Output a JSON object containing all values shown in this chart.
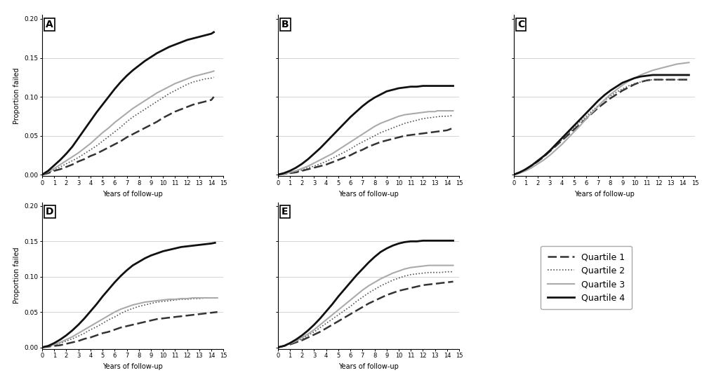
{
  "xlabel": "Years of follow-up",
  "ylabel": "Proportion failed",
  "xlim": [
    0,
    15
  ],
  "ylim": [
    -0.002,
    0.205
  ],
  "yticks": [
    0.0,
    0.05,
    0.1,
    0.15,
    0.2
  ],
  "xticks": [
    0,
    1,
    2,
    3,
    4,
    5,
    6,
    7,
    8,
    9,
    10,
    11,
    12,
    13,
    14,
    15
  ],
  "line_styles": {
    "Q1": {
      "color": "#333333",
      "linestyle": "--",
      "linewidth": 1.8,
      "dashes": [
        6,
        3
      ]
    },
    "Q2": {
      "color": "#555555",
      "linestyle": "--",
      "linewidth": 1.2,
      "dashes": [
        2,
        2,
        2,
        2,
        2,
        2
      ]
    },
    "Q3": {
      "color": "#aaaaaa",
      "linestyle": "-",
      "linewidth": 1.5
    },
    "Q4": {
      "color": "#111111",
      "linestyle": "-",
      "linewidth": 2.0
    }
  },
  "legend_labels": [
    "Quartile 1",
    "Quartile 2",
    "Quartile 3",
    "Quartile 4"
  ],
  "background_color": "#ffffff",
  "grid_color": "#cccccc",
  "panel_A": {
    "Q1": {
      "x": [
        0,
        0.5,
        1,
        1.5,
        2,
        2.5,
        3,
        3.5,
        4,
        4.5,
        5,
        5.5,
        6,
        6.5,
        7,
        7.5,
        8,
        8.5,
        9,
        9.5,
        10,
        10.5,
        11,
        11.5,
        12,
        12.5,
        13,
        13.5,
        14,
        14.2
      ],
      "y": [
        0,
        0.002,
        0.005,
        0.007,
        0.01,
        0.013,
        0.017,
        0.02,
        0.024,
        0.027,
        0.031,
        0.035,
        0.039,
        0.043,
        0.048,
        0.052,
        0.056,
        0.06,
        0.064,
        0.068,
        0.073,
        0.077,
        0.081,
        0.084,
        0.087,
        0.09,
        0.092,
        0.094,
        0.096,
        0.1
      ]
    },
    "Q2": {
      "x": [
        0,
        0.5,
        1,
        1.5,
        2,
        2.5,
        3,
        3.5,
        4,
        4.5,
        5,
        5.5,
        6,
        6.5,
        7,
        7.5,
        8,
        8.5,
        9,
        9.5,
        10,
        10.5,
        11,
        11.5,
        12,
        12.5,
        13,
        13.5,
        14,
        14.2
      ],
      "y": [
        0,
        0.003,
        0.006,
        0.01,
        0.014,
        0.018,
        0.022,
        0.027,
        0.032,
        0.037,
        0.043,
        0.049,
        0.055,
        0.061,
        0.068,
        0.074,
        0.079,
        0.084,
        0.089,
        0.094,
        0.099,
        0.104,
        0.108,
        0.112,
        0.116,
        0.119,
        0.121,
        0.123,
        0.124,
        0.125
      ]
    },
    "Q3": {
      "x": [
        0,
        0.5,
        1,
        1.5,
        2,
        2.5,
        3,
        3.5,
        4,
        4.5,
        5,
        5.5,
        6,
        6.5,
        7,
        7.5,
        8,
        8.5,
        9,
        9.5,
        10,
        10.5,
        11,
        11.5,
        12,
        12.5,
        13,
        13.5,
        14,
        14.2
      ],
      "y": [
        0,
        0.004,
        0.008,
        0.013,
        0.018,
        0.023,
        0.028,
        0.034,
        0.04,
        0.047,
        0.054,
        0.06,
        0.067,
        0.073,
        0.079,
        0.085,
        0.09,
        0.095,
        0.1,
        0.105,
        0.109,
        0.113,
        0.117,
        0.12,
        0.123,
        0.126,
        0.128,
        0.13,
        0.132,
        0.133
      ]
    },
    "Q4": {
      "x": [
        0,
        0.5,
        1,
        1.5,
        2,
        2.5,
        3,
        3.5,
        4,
        4.5,
        5,
        5.5,
        6,
        6.5,
        7,
        7.5,
        8,
        8.5,
        9,
        9.5,
        10,
        10.5,
        11,
        11.5,
        12,
        12.5,
        13,
        13.5,
        14,
        14.2
      ],
      "y": [
        0,
        0.005,
        0.012,
        0.019,
        0.027,
        0.036,
        0.047,
        0.058,
        0.069,
        0.08,
        0.09,
        0.1,
        0.11,
        0.119,
        0.127,
        0.134,
        0.14,
        0.146,
        0.151,
        0.156,
        0.16,
        0.164,
        0.167,
        0.17,
        0.173,
        0.175,
        0.177,
        0.179,
        0.181,
        0.183
      ]
    }
  },
  "panel_B": {
    "Q1": {
      "x": [
        0,
        0.5,
        1,
        1.5,
        2,
        2.5,
        3,
        3.5,
        4,
        4.5,
        5,
        5.5,
        6,
        6.5,
        7,
        7.5,
        8,
        8.5,
        9,
        9.5,
        10,
        10.5,
        11,
        11.5,
        12,
        12.5,
        13,
        13.5,
        14,
        14.5
      ],
      "y": [
        0,
        0.001,
        0.002,
        0.003,
        0.005,
        0.007,
        0.009,
        0.011,
        0.013,
        0.016,
        0.019,
        0.022,
        0.025,
        0.029,
        0.032,
        0.036,
        0.039,
        0.042,
        0.044,
        0.046,
        0.048,
        0.05,
        0.051,
        0.052,
        0.053,
        0.054,
        0.055,
        0.056,
        0.057,
        0.06
      ]
    },
    "Q2": {
      "x": [
        0,
        0.5,
        1,
        1.5,
        2,
        2.5,
        3,
        3.5,
        4,
        4.5,
        5,
        5.5,
        6,
        6.5,
        7,
        7.5,
        8,
        8.5,
        9,
        9.5,
        10,
        10.5,
        11,
        11.5,
        12,
        12.5,
        13,
        13.5,
        14,
        14.5
      ],
      "y": [
        0,
        0.001,
        0.002,
        0.004,
        0.006,
        0.009,
        0.011,
        0.014,
        0.017,
        0.021,
        0.025,
        0.029,
        0.033,
        0.038,
        0.042,
        0.046,
        0.05,
        0.054,
        0.057,
        0.06,
        0.063,
        0.066,
        0.068,
        0.07,
        0.072,
        0.073,
        0.074,
        0.075,
        0.075,
        0.076
      ]
    },
    "Q3": {
      "x": [
        0,
        0.5,
        1,
        1.5,
        2,
        2.5,
        3,
        3.5,
        4,
        4.5,
        5,
        5.5,
        6,
        6.5,
        7,
        7.5,
        8,
        8.5,
        9,
        9.5,
        10,
        10.5,
        11,
        11.5,
        12,
        12.5,
        13,
        13.2,
        14,
        14.5
      ],
      "y": [
        0,
        0.001,
        0.003,
        0.005,
        0.008,
        0.011,
        0.015,
        0.019,
        0.023,
        0.027,
        0.032,
        0.037,
        0.042,
        0.047,
        0.052,
        0.057,
        0.062,
        0.066,
        0.069,
        0.072,
        0.075,
        0.077,
        0.078,
        0.079,
        0.08,
        0.081,
        0.081,
        0.082,
        0.082,
        0.082
      ]
    },
    "Q4": {
      "x": [
        0,
        0.5,
        1,
        1.5,
        2,
        2.5,
        3,
        3.5,
        4,
        4.5,
        5,
        5.5,
        6,
        6.5,
        7,
        7.5,
        8,
        8.5,
        9,
        9.5,
        10,
        10.5,
        11,
        11.5,
        12,
        12.2,
        13,
        13.5,
        14,
        14.5
      ],
      "y": [
        0,
        0.002,
        0.005,
        0.009,
        0.014,
        0.02,
        0.027,
        0.034,
        0.042,
        0.05,
        0.058,
        0.066,
        0.074,
        0.081,
        0.088,
        0.094,
        0.099,
        0.103,
        0.107,
        0.109,
        0.111,
        0.112,
        0.113,
        0.113,
        0.114,
        0.114,
        0.114,
        0.114,
        0.114,
        0.114
      ]
    }
  },
  "panel_C": {
    "Q1": {
      "x": [
        0,
        0.5,
        1,
        1.5,
        2,
        2.5,
        3,
        3.5,
        4,
        4.5,
        5,
        5.5,
        6,
        6.5,
        7,
        7.5,
        8,
        8.5,
        9,
        9.5,
        10,
        10.5,
        11,
        11.5,
        12,
        12.2,
        13,
        13.5,
        14,
        14.5
      ],
      "y": [
        0,
        0.003,
        0.007,
        0.012,
        0.017,
        0.023,
        0.03,
        0.037,
        0.044,
        0.051,
        0.058,
        0.065,
        0.072,
        0.079,
        0.086,
        0.092,
        0.098,
        0.103,
        0.108,
        0.112,
        0.116,
        0.119,
        0.121,
        0.122,
        0.122,
        0.122,
        0.122,
        0.122,
        0.122,
        0.122
      ]
    },
    "Q2": {
      "x": [
        0,
        0.5,
        1,
        1.5,
        2,
        2.5,
        3,
        3.5,
        4,
        4.5,
        5,
        5.5,
        6,
        6.5,
        7,
        7.5,
        8,
        8.5,
        9,
        9.5,
        10,
        10.5,
        11,
        11.5,
        12,
        12.5,
        13,
        13.5,
        14,
        14.5
      ],
      "y": [
        0,
        0.003,
        0.007,
        0.012,
        0.017,
        0.023,
        0.03,
        0.037,
        0.045,
        0.053,
        0.06,
        0.068,
        0.075,
        0.082,
        0.089,
        0.095,
        0.101,
        0.106,
        0.11,
        0.114,
        0.117,
        0.119,
        0.121,
        0.122,
        0.122,
        0.122,
        0.122,
        0.122,
        0.122,
        0.122
      ]
    },
    "Q3": {
      "x": [
        0,
        0.5,
        1,
        1.5,
        2,
        2.5,
        3,
        3.5,
        4,
        4.5,
        5,
        5.5,
        6,
        6.5,
        7,
        7.5,
        8,
        8.5,
        9,
        9.5,
        10,
        10.5,
        11,
        11.5,
        12,
        12.5,
        13,
        13.5,
        14,
        14.5
      ],
      "y": [
        0,
        0.002,
        0.005,
        0.009,
        0.014,
        0.019,
        0.025,
        0.032,
        0.039,
        0.047,
        0.055,
        0.063,
        0.072,
        0.08,
        0.088,
        0.096,
        0.103,
        0.109,
        0.115,
        0.12,
        0.124,
        0.128,
        0.131,
        0.134,
        0.136,
        0.138,
        0.14,
        0.142,
        0.143,
        0.144
      ]
    },
    "Q4": {
      "x": [
        0,
        0.5,
        1,
        1.5,
        2,
        2.5,
        3,
        3.5,
        4,
        4.5,
        5,
        5.5,
        6,
        6.5,
        7,
        7.5,
        8,
        8.5,
        9,
        9.5,
        10,
        10.5,
        11,
        11.5,
        12,
        12.2,
        13,
        13.5,
        14,
        14.5
      ],
      "y": [
        0,
        0.003,
        0.007,
        0.012,
        0.018,
        0.024,
        0.031,
        0.039,
        0.047,
        0.055,
        0.063,
        0.071,
        0.079,
        0.087,
        0.095,
        0.102,
        0.108,
        0.113,
        0.118,
        0.121,
        0.124,
        0.126,
        0.127,
        0.128,
        0.128,
        0.128,
        0.128,
        0.128,
        0.128,
        0.128
      ]
    }
  },
  "panel_D": {
    "Q1": {
      "x": [
        0,
        0.5,
        1,
        1.5,
        2,
        2.5,
        3,
        3.5,
        4,
        4.5,
        5,
        5.5,
        6,
        6.5,
        7,
        7.5,
        8,
        8.5,
        9,
        9.5,
        10,
        10.5,
        11,
        11.5,
        12,
        12.5,
        13,
        13.5,
        14,
        14.5
      ],
      "y": [
        0,
        0.001,
        0.002,
        0.003,
        0.005,
        0.007,
        0.009,
        0.012,
        0.014,
        0.017,
        0.02,
        0.022,
        0.025,
        0.028,
        0.03,
        0.032,
        0.034,
        0.036,
        0.038,
        0.04,
        0.041,
        0.042,
        0.043,
        0.044,
        0.045,
        0.046,
        0.047,
        0.048,
        0.049,
        0.05
      ]
    },
    "Q2": {
      "x": [
        0,
        0.5,
        1,
        1.5,
        2,
        2.5,
        3,
        3.5,
        4,
        4.5,
        5,
        5.5,
        6,
        6.5,
        7,
        7.5,
        8,
        8.5,
        9,
        9.5,
        10,
        10.5,
        11,
        11.5,
        12,
        12.5,
        13,
        13.5,
        14,
        14.5
      ],
      "y": [
        0,
        0.001,
        0.003,
        0.006,
        0.009,
        0.012,
        0.016,
        0.02,
        0.025,
        0.029,
        0.034,
        0.039,
        0.043,
        0.048,
        0.052,
        0.055,
        0.058,
        0.06,
        0.062,
        0.064,
        0.065,
        0.066,
        0.067,
        0.068,
        0.068,
        0.069,
        0.069,
        0.07,
        0.07,
        0.07
      ]
    },
    "Q3": {
      "x": [
        0,
        0.5,
        1,
        1.5,
        2,
        2.5,
        3,
        3.5,
        4,
        4.5,
        5,
        5.5,
        6,
        6.5,
        7,
        7.5,
        8,
        8.5,
        9,
        9.5,
        10,
        10.5,
        11,
        11.5,
        12,
        12.5,
        13,
        13.2,
        14,
        14.5
      ],
      "y": [
        0,
        0.002,
        0.004,
        0.007,
        0.011,
        0.015,
        0.02,
        0.025,
        0.03,
        0.035,
        0.04,
        0.045,
        0.05,
        0.054,
        0.057,
        0.06,
        0.062,
        0.064,
        0.065,
        0.066,
        0.067,
        0.068,
        0.068,
        0.069,
        0.069,
        0.07,
        0.07,
        0.07,
        0.07,
        0.07
      ]
    },
    "Q4": {
      "x": [
        0,
        0.5,
        1,
        1.5,
        2,
        2.5,
        3,
        3.5,
        4,
        4.5,
        5,
        5.5,
        6,
        6.5,
        7,
        7.5,
        8,
        8.5,
        9,
        9.5,
        10,
        10.5,
        11,
        11.5,
        12,
        12.5,
        13,
        13.5,
        14,
        14.3
      ],
      "y": [
        0,
        0.002,
        0.006,
        0.011,
        0.017,
        0.024,
        0.032,
        0.041,
        0.051,
        0.061,
        0.072,
        0.082,
        0.092,
        0.101,
        0.109,
        0.116,
        0.121,
        0.126,
        0.13,
        0.133,
        0.136,
        0.138,
        0.14,
        0.142,
        0.143,
        0.144,
        0.145,
        0.146,
        0.147,
        0.148
      ]
    }
  },
  "panel_E": {
    "Q1": {
      "x": [
        0,
        0.5,
        1,
        1.5,
        2,
        2.5,
        3,
        3.5,
        4,
        4.5,
        5,
        5.5,
        6,
        6.5,
        7,
        7.5,
        8,
        8.5,
        9,
        9.5,
        10,
        10.5,
        11,
        11.5,
        12,
        12.5,
        13,
        13.5,
        14,
        14.5
      ],
      "y": [
        0,
        0.002,
        0.004,
        0.007,
        0.01,
        0.014,
        0.018,
        0.022,
        0.027,
        0.032,
        0.037,
        0.042,
        0.047,
        0.052,
        0.057,
        0.062,
        0.066,
        0.07,
        0.074,
        0.077,
        0.08,
        0.082,
        0.084,
        0.086,
        0.088,
        0.089,
        0.09,
        0.091,
        0.092,
        0.093
      ]
    },
    "Q2": {
      "x": [
        0,
        0.5,
        1,
        1.5,
        2,
        2.5,
        3,
        3.5,
        4,
        4.5,
        5,
        5.5,
        6,
        6.5,
        7,
        7.5,
        8,
        8.5,
        9,
        9.5,
        10,
        10.5,
        11,
        11.5,
        12,
        12.5,
        13,
        13.5,
        14,
        14.5
      ],
      "y": [
        0,
        0.002,
        0.005,
        0.008,
        0.012,
        0.017,
        0.022,
        0.028,
        0.034,
        0.04,
        0.046,
        0.052,
        0.058,
        0.065,
        0.071,
        0.077,
        0.082,
        0.087,
        0.091,
        0.095,
        0.098,
        0.101,
        0.103,
        0.104,
        0.105,
        0.106,
        0.106,
        0.106,
        0.107,
        0.107
      ]
    },
    "Q3": {
      "x": [
        0,
        0.5,
        1,
        1.5,
        2,
        2.5,
        3,
        3.5,
        4,
        4.5,
        5,
        5.5,
        6,
        6.5,
        7,
        7.5,
        8,
        8.5,
        9,
        9.5,
        10,
        10.5,
        11,
        11.5,
        12,
        12.5,
        13,
        13.5,
        14,
        14.5
      ],
      "y": [
        0,
        0.002,
        0.005,
        0.009,
        0.014,
        0.019,
        0.025,
        0.032,
        0.039,
        0.046,
        0.053,
        0.06,
        0.067,
        0.074,
        0.081,
        0.087,
        0.092,
        0.097,
        0.101,
        0.105,
        0.108,
        0.111,
        0.113,
        0.114,
        0.115,
        0.116,
        0.116,
        0.116,
        0.116,
        0.116
      ]
    },
    "Q4": {
      "x": [
        0,
        0.5,
        1,
        1.5,
        2,
        2.5,
        3,
        3.5,
        4,
        4.5,
        5,
        5.5,
        6,
        6.5,
        7,
        7.5,
        8,
        8.5,
        9,
        9.5,
        10,
        10.5,
        11,
        11.5,
        12,
        12.5,
        13,
        13.5,
        14,
        14.5
      ],
      "y": [
        0,
        0.002,
        0.006,
        0.011,
        0.017,
        0.024,
        0.032,
        0.041,
        0.051,
        0.061,
        0.072,
        0.082,
        0.092,
        0.102,
        0.111,
        0.12,
        0.128,
        0.135,
        0.14,
        0.144,
        0.147,
        0.149,
        0.15,
        0.15,
        0.151,
        0.151,
        0.151,
        0.151,
        0.151,
        0.151
      ]
    }
  }
}
